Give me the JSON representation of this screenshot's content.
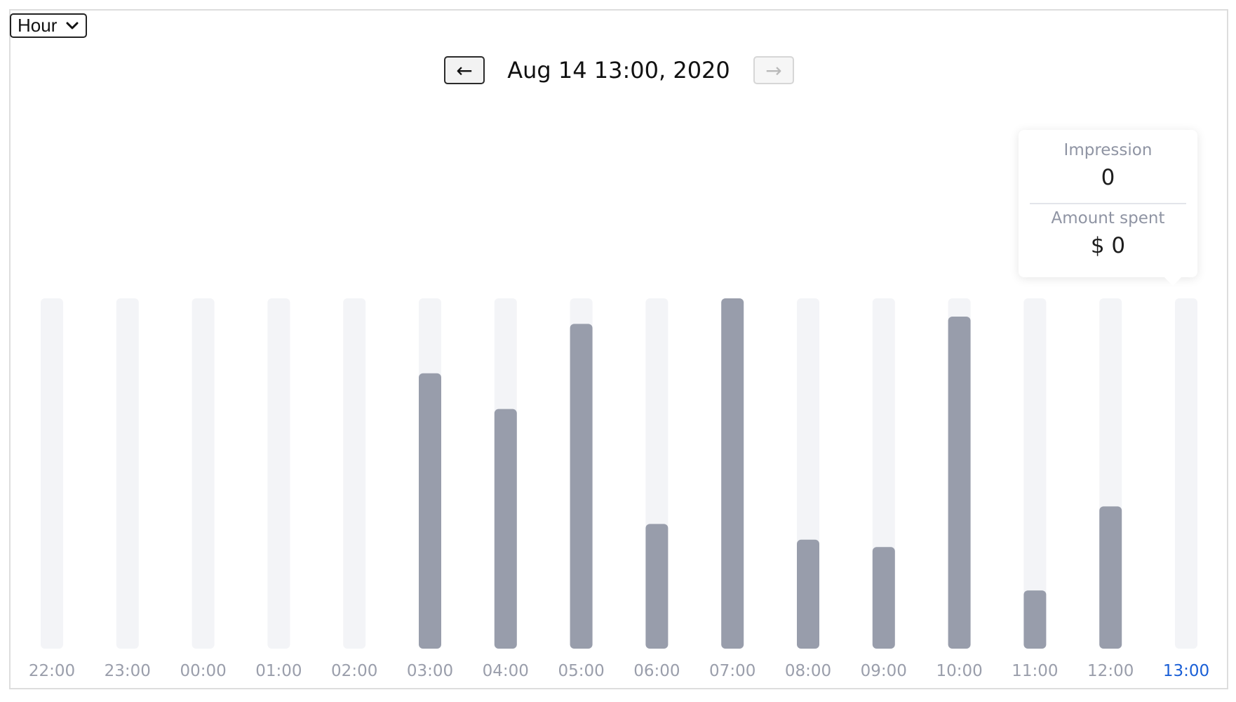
{
  "controls": {
    "granularity": "Hour",
    "prev_label": "←",
    "next_label": "→",
    "current_period": "Aug 14 13:00, 2020"
  },
  "tooltip": {
    "metric1_label": "Impression",
    "metric1_value": "0",
    "metric2_label": "Amount spent",
    "metric2_value": "$ 0"
  },
  "colors": {
    "bar": "#989dab",
    "track": "#f3f4f7",
    "tick": "#9a9eab",
    "active_tick": "#1a5fd6"
  },
  "chart_data": {
    "type": "bar",
    "categories": [
      "22:00",
      "23:00",
      "00:00",
      "01:00",
      "02:00",
      "03:00",
      "04:00",
      "05:00",
      "06:00",
      "07:00",
      "08:00",
      "09:00",
      "10:00",
      "11:00",
      "12:00",
      "13:00"
    ],
    "values": [
      0,
      0,
      0,
      0,
      0,
      0.786,
      0.684,
      0.927,
      0.356,
      1.0,
      0.311,
      0.29,
      0.948,
      0.166,
      0.406,
      0
    ],
    "ylim": [
      0,
      1
    ],
    "active_category": "13:00",
    "grid": false,
    "legend": "none"
  }
}
